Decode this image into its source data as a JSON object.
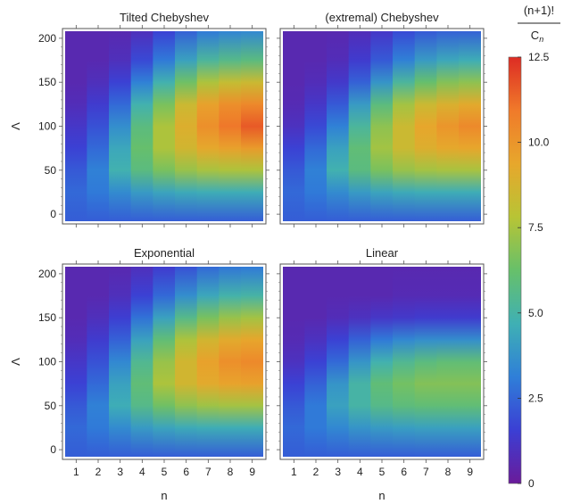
{
  "colors": {
    "scale": [
      "#6a1b9a",
      "#3b3fd4",
      "#2f7fd8",
      "#3fb0b4",
      "#67c06a",
      "#b8c435",
      "#e7a72c",
      "#f07a2a",
      "#dd2c24"
    ]
  },
  "chart_data": [
    {
      "type": "heatmap",
      "title": "Tilted Chebyshev",
      "xlabel": "",
      "ylabel": "Λ",
      "x": [
        1,
        2,
        3,
        4,
        5,
        6,
        7,
        8,
        9
      ],
      "ylim": [
        0,
        200
      ],
      "yticks": [
        0,
        50,
        100,
        150,
        200
      ],
      "y_samples": [
        0,
        25,
        50,
        75,
        100,
        125,
        150,
        175,
        200
      ],
      "values": [
        [
          2.3,
          2.3,
          2.3,
          2.3,
          2.3,
          2.3,
          2.3,
          2.3,
          2.3
        ],
        [
          2.6,
          3.0,
          3.5,
          4.0,
          4.3,
          4.5,
          4.6,
          4.6,
          4.6
        ],
        [
          2.2,
          3.2,
          4.8,
          5.8,
          6.6,
          7.2,
          7.5,
          7.6,
          7.6
        ],
        [
          1.6,
          2.6,
          4.4,
          6.2,
          7.6,
          8.6,
          9.3,
          9.6,
          9.8
        ],
        [
          1.2,
          2.0,
          3.6,
          5.8,
          7.6,
          9.0,
          10.2,
          11.0,
          11.6
        ],
        [
          0.8,
          1.4,
          2.6,
          4.8,
          6.6,
          8.4,
          9.6,
          10.2,
          10.4
        ],
        [
          0.6,
          0.9,
          1.6,
          3.2,
          4.8,
          6.4,
          7.6,
          8.2,
          8.4
        ],
        [
          0.6,
          0.6,
          0.9,
          1.8,
          3.0,
          4.2,
          5.2,
          5.6,
          5.8
        ],
        [
          0.6,
          0.6,
          0.6,
          0.9,
          1.6,
          2.4,
          3.0,
          3.3,
          3.4
        ]
      ]
    },
    {
      "type": "heatmap",
      "title": "(extremal) Chebyshev",
      "xlabel": "",
      "ylabel": "",
      "x": [
        1,
        2,
        3,
        4,
        5,
        6,
        7,
        8,
        9
      ],
      "ylim": [
        0,
        200
      ],
      "yticks": [
        0,
        50,
        100,
        150,
        200
      ],
      "y_samples": [
        0,
        25,
        50,
        75,
        100,
        125,
        150,
        175,
        200
      ],
      "values": [
        [
          2.3,
          2.3,
          2.3,
          2.3,
          2.3,
          2.3,
          2.3,
          2.3,
          2.3
        ],
        [
          2.6,
          3.0,
          3.5,
          4.0,
          4.3,
          4.5,
          4.6,
          4.6,
          4.6
        ],
        [
          2.2,
          3.2,
          4.8,
          5.8,
          6.6,
          7.2,
          7.4,
          7.5,
          7.5
        ],
        [
          1.6,
          2.6,
          4.2,
          6.0,
          7.4,
          8.4,
          9.0,
          9.3,
          9.4
        ],
        [
          1.0,
          1.8,
          3.2,
          5.2,
          7.0,
          8.4,
          9.4,
          10.0,
          10.4
        ],
        [
          0.7,
          1.2,
          2.2,
          4.0,
          5.8,
          7.4,
          8.4,
          8.9,
          9.2
        ],
        [
          0.6,
          0.8,
          1.3,
          2.4,
          3.8,
          5.2,
          6.2,
          6.8,
          7.0
        ],
        [
          0.6,
          0.6,
          0.8,
          1.4,
          2.2,
          3.2,
          4.0,
          4.4,
          4.6
        ],
        [
          0.6,
          0.6,
          0.6,
          0.8,
          1.2,
          1.8,
          2.2,
          2.4,
          2.4
        ]
      ]
    },
    {
      "type": "heatmap",
      "title": "Exponential",
      "xlabel": "n",
      "ylabel": "Λ",
      "x": [
        1,
        2,
        3,
        4,
        5,
        6,
        7,
        8,
        9
      ],
      "ylim": [
        0,
        200
      ],
      "yticks": [
        0,
        50,
        100,
        150,
        200
      ],
      "y_samples": [
        0,
        25,
        50,
        75,
        100,
        125,
        150,
        175,
        200
      ],
      "values": [
        [
          2.3,
          2.3,
          2.3,
          2.3,
          2.3,
          2.3,
          2.3,
          2.3,
          2.3
        ],
        [
          2.6,
          3.0,
          3.5,
          4.0,
          4.3,
          4.5,
          4.6,
          4.6,
          4.6
        ],
        [
          2.2,
          3.2,
          4.6,
          5.6,
          6.4,
          7.0,
          7.3,
          7.4,
          7.4
        ],
        [
          1.6,
          2.6,
          4.2,
          6.0,
          7.6,
          8.6,
          9.2,
          9.5,
          9.6
        ],
        [
          1.2,
          2.0,
          3.4,
          5.4,
          7.2,
          8.6,
          9.6,
          10.2,
          10.4
        ],
        [
          0.8,
          1.4,
          2.4,
          4.2,
          6.0,
          7.6,
          8.6,
          9.2,
          9.4
        ],
        [
          0.6,
          0.9,
          1.5,
          2.8,
          4.2,
          5.6,
          6.6,
          7.2,
          7.4
        ],
        [
          0.6,
          0.6,
          0.9,
          1.6,
          2.6,
          3.6,
          4.4,
          4.9,
          5.0
        ],
        [
          0.6,
          0.6,
          0.6,
          0.9,
          1.4,
          2.0,
          2.6,
          2.9,
          3.0
        ]
      ]
    },
    {
      "type": "heatmap",
      "title": "Linear",
      "xlabel": "n",
      "ylabel": "",
      "x": [
        1,
        2,
        3,
        4,
        5,
        6,
        7,
        8,
        9
      ],
      "ylim": [
        0,
        200
      ],
      "yticks": [
        0,
        50,
        100,
        150,
        200
      ],
      "y_samples": [
        0,
        25,
        50,
        75,
        100,
        125,
        150,
        175,
        200
      ],
      "values": [
        [
          2.3,
          2.3,
          2.3,
          2.3,
          2.3,
          2.3,
          2.3,
          2.3,
          2.3
        ],
        [
          2.6,
          3.0,
          3.4,
          3.8,
          4.0,
          4.1,
          4.2,
          4.2,
          4.2
        ],
        [
          2.2,
          3.0,
          4.2,
          5.0,
          5.6,
          5.9,
          6.0,
          6.0,
          6.0
        ],
        [
          1.6,
          2.4,
          3.8,
          5.0,
          6.0,
          6.5,
          6.8,
          6.8,
          6.8
        ],
        [
          1.0,
          1.6,
          2.6,
          3.8,
          4.8,
          5.4,
          5.8,
          6.0,
          6.0
        ],
        [
          0.7,
          1.0,
          1.6,
          2.4,
          3.0,
          3.4,
          3.6,
          3.6,
          3.6
        ],
        [
          0.6,
          0.6,
          0.8,
          1.0,
          1.2,
          1.3,
          1.4,
          1.4,
          1.4
        ],
        [
          0.6,
          0.6,
          0.6,
          0.6,
          0.6,
          0.7,
          0.7,
          0.7,
          0.7
        ],
        [
          0.6,
          0.6,
          0.6,
          0.6,
          0.6,
          0.6,
          0.6,
          0.6,
          0.6
        ]
      ]
    }
  ],
  "legend": {
    "numerator": "(n+1)!",
    "denominator": "C",
    "denominator_sub": "n",
    "range": [
      0,
      12.5
    ],
    "ticks": [
      "0",
      "2.5",
      "5.0",
      "7.5",
      "10.0",
      "12.5"
    ]
  }
}
